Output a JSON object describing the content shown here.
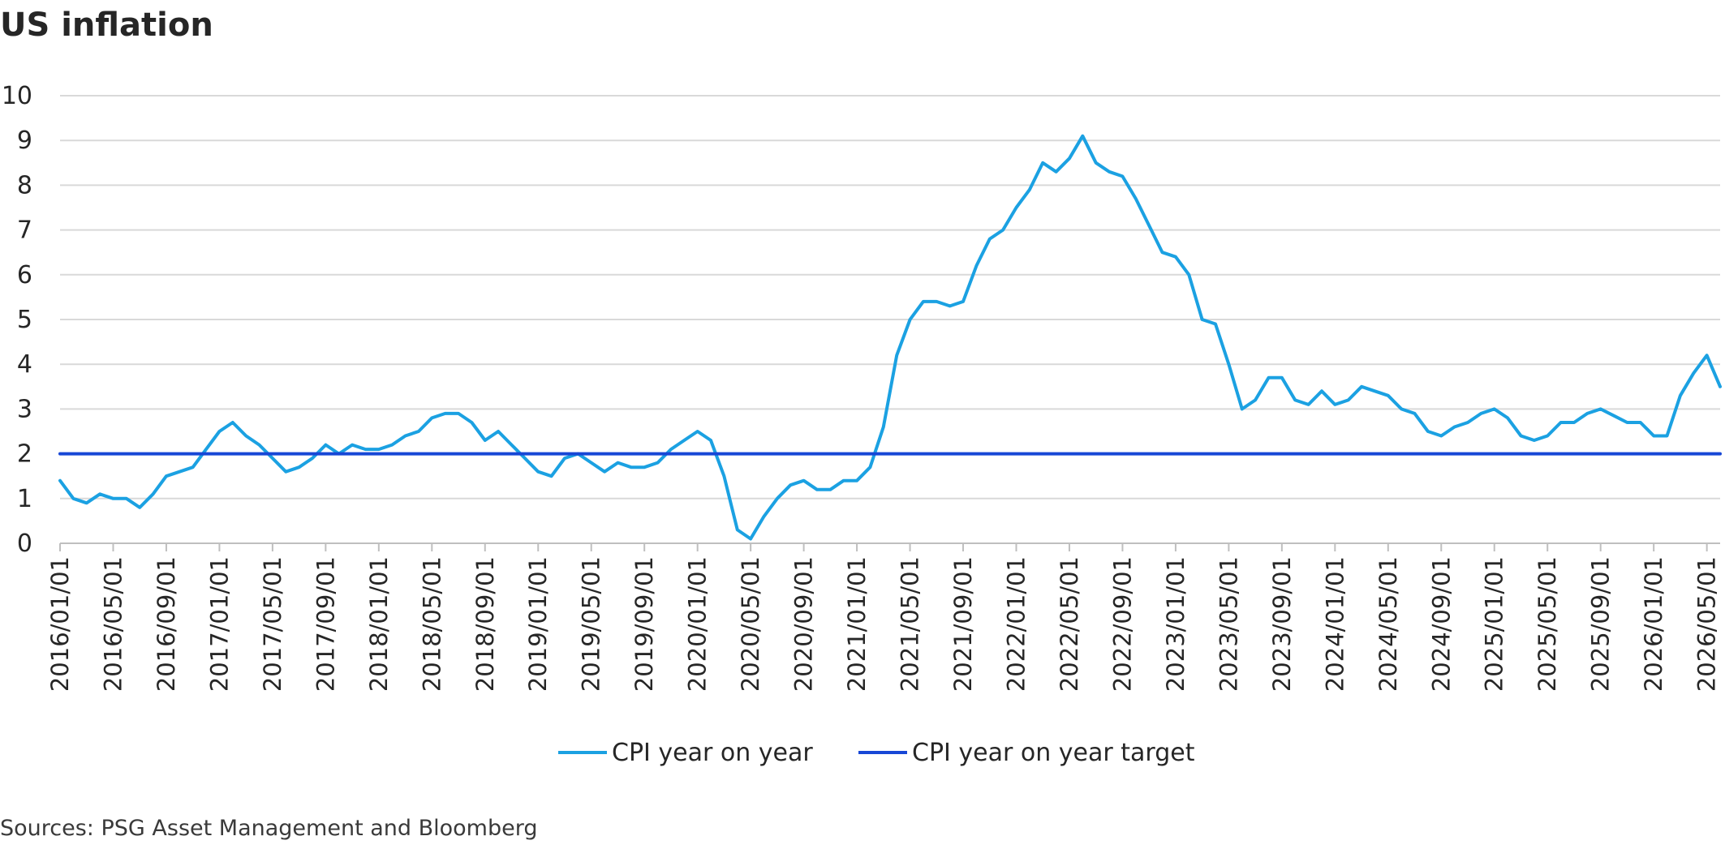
{
  "chart_data": {
    "type": "line",
    "title": "US inflation",
    "source": "Sources: PSG Asset Management and Bloomberg",
    "xlabel": "",
    "ylabel": "",
    "ylim": [
      0,
      10
    ],
    "yticks": [
      "0",
      "1",
      "2",
      "3",
      "4",
      "5",
      "6",
      "7",
      "8",
      "9",
      "10"
    ],
    "grid": true,
    "legend_position": "bottom",
    "x": [
      "2016/01/01",
      "2016/02/01",
      "2016/03/01",
      "2016/04/01",
      "2016/05/01",
      "2016/06/01",
      "2016/07/01",
      "2016/08/01",
      "2016/09/01",
      "2016/10/01",
      "2016/11/01",
      "2016/12/01",
      "2017/01/01",
      "2017/02/01",
      "2017/03/01",
      "2017/04/01",
      "2017/05/01",
      "2017/06/01",
      "2017/07/01",
      "2017/08/01",
      "2017/09/01",
      "2017/10/01",
      "2017/11/01",
      "2017/12/01",
      "2018/01/01",
      "2018/02/01",
      "2018/03/01",
      "2018/04/01",
      "2018/05/01",
      "2018/06/01",
      "2018/07/01",
      "2018/08/01",
      "2018/09/01",
      "2018/10/01",
      "2018/11/01",
      "2018/12/01",
      "2019/01/01",
      "2019/02/01",
      "2019/03/01",
      "2019/04/01",
      "2019/05/01",
      "2019/06/01",
      "2019/07/01",
      "2019/08/01",
      "2019/09/01",
      "2019/10/01",
      "2019/11/01",
      "2019/12/01",
      "2020/01/01",
      "2020/02/01",
      "2020/03/01",
      "2020/04/01",
      "2020/05/01",
      "2020/06/01",
      "2020/07/01",
      "2020/08/01",
      "2020/09/01",
      "2020/10/01",
      "2020/11/01",
      "2020/12/01",
      "2021/01/01",
      "2021/02/01",
      "2021/03/01",
      "2021/04/01",
      "2021/05/01",
      "2021/06/01",
      "2021/07/01",
      "2021/08/01",
      "2021/09/01",
      "2021/10/01",
      "2021/11/01",
      "2021/12/01",
      "2022/01/01",
      "2022/02/01",
      "2022/03/01",
      "2022/04/01",
      "2022/05/01",
      "2022/06/01",
      "2022/07/01",
      "2022/08/01",
      "2022/09/01",
      "2022/10/01",
      "2022/11/01",
      "2022/12/01",
      "2023/01/01",
      "2023/02/01",
      "2023/03/01",
      "2023/04/01",
      "2023/05/01",
      "2023/06/01",
      "2023/07/01",
      "2023/08/01",
      "2023/09/01",
      "2023/10/01",
      "2023/11/01",
      "2023/12/01",
      "2024/01/01",
      "2024/02/01",
      "2024/03/01",
      "2024/04/01",
      "2024/05/01",
      "2024/06/01",
      "2024/07/01",
      "2024/08/01",
      "2024/09/01",
      "2024/10/01",
      "2024/11/01",
      "2024/12/01",
      "2025/01/01",
      "2025/02/01",
      "2025/03/01",
      "2025/04/01",
      "2025/05/01",
      "2025/06/01",
      "2025/07/01",
      "2025/08/01",
      "2025/09/01",
      "2025/10/01",
      "2025/11/01",
      "2025/12/01",
      "2026/01/01",
      "2026/02/01",
      "2026/03/01",
      "2026/04/01",
      "2026/05/01",
      "2026/06/01"
    ],
    "tick_labels": [
      "2016/01/01",
      "2016/05/01",
      "2016/09/01",
      "2017/01/01",
      "2017/05/01",
      "2017/09/01",
      "2018/01/01",
      "2018/05/01",
      "2018/09/01",
      "2019/01/01",
      "2019/05/01",
      "2019/09/01",
      "2020/01/01",
      "2020/05/01",
      "2020/09/01",
      "2021/01/01",
      "2021/05/01",
      "2021/09/01",
      "2022/01/01",
      "2022/05/01",
      "2022/09/01",
      "2023/01/01",
      "2023/05/01",
      "2023/09/01",
      "2024/01/01",
      "2024/05/01",
      "2024/09/01",
      "2025/01/01",
      "2025/05/01",
      "2025/09/01",
      "2026/01/01",
      "2026/05/01"
    ],
    "series": [
      {
        "name": "CPI year on year",
        "color": "#1ba1e2",
        "values": [
          1.4,
          1.0,
          0.9,
          1.1,
          1.0,
          1.0,
          0.8,
          1.1,
          1.5,
          1.6,
          1.7,
          2.1,
          2.5,
          2.7,
          2.4,
          2.2,
          1.9,
          1.6,
          1.7,
          1.9,
          2.2,
          2.0,
          2.2,
          2.1,
          2.1,
          2.2,
          2.4,
          2.5,
          2.8,
          2.9,
          2.9,
          2.7,
          2.3,
          2.5,
          2.2,
          1.9,
          1.6,
          1.5,
          1.9,
          2.0,
          1.8,
          1.6,
          1.8,
          1.7,
          1.7,
          1.8,
          2.1,
          2.3,
          2.5,
          2.3,
          1.5,
          0.3,
          0.1,
          0.6,
          1.0,
          1.3,
          1.4,
          1.2,
          1.2,
          1.4,
          1.4,
          1.7,
          2.6,
          4.2,
          5.0,
          5.4,
          5.4,
          5.3,
          5.4,
          6.2,
          6.8,
          7.0,
          7.5,
          7.9,
          8.5,
          8.3,
          8.6,
          9.1,
          8.5,
          8.3,
          8.2,
          7.7,
          7.1,
          6.5,
          6.4,
          6.0,
          5.0,
          4.9,
          4.0,
          3.0,
          3.2,
          3.7,
          3.7,
          3.2,
          3.1,
          3.4,
          3.1,
          3.2,
          3.5,
          3.4,
          3.3,
          3.0,
          2.9,
          2.5,
          2.4,
          2.6,
          2.7,
          2.9,
          3.0,
          2.8,
          2.4,
          2.3,
          2.4,
          2.7,
          2.7,
          2.9,
          3.0,
          2.85,
          2.7,
          2.7,
          2.4,
          2.4,
          3.3,
          3.8,
          4.2,
          3.5
        ]
      },
      {
        "name": "CPI year on year target",
        "color": "#1747d6",
        "constant": 2
      }
    ]
  },
  "colors": {
    "grid": "#d9d9d9",
    "axis": "#bfbfbf",
    "text": "#262626"
  }
}
